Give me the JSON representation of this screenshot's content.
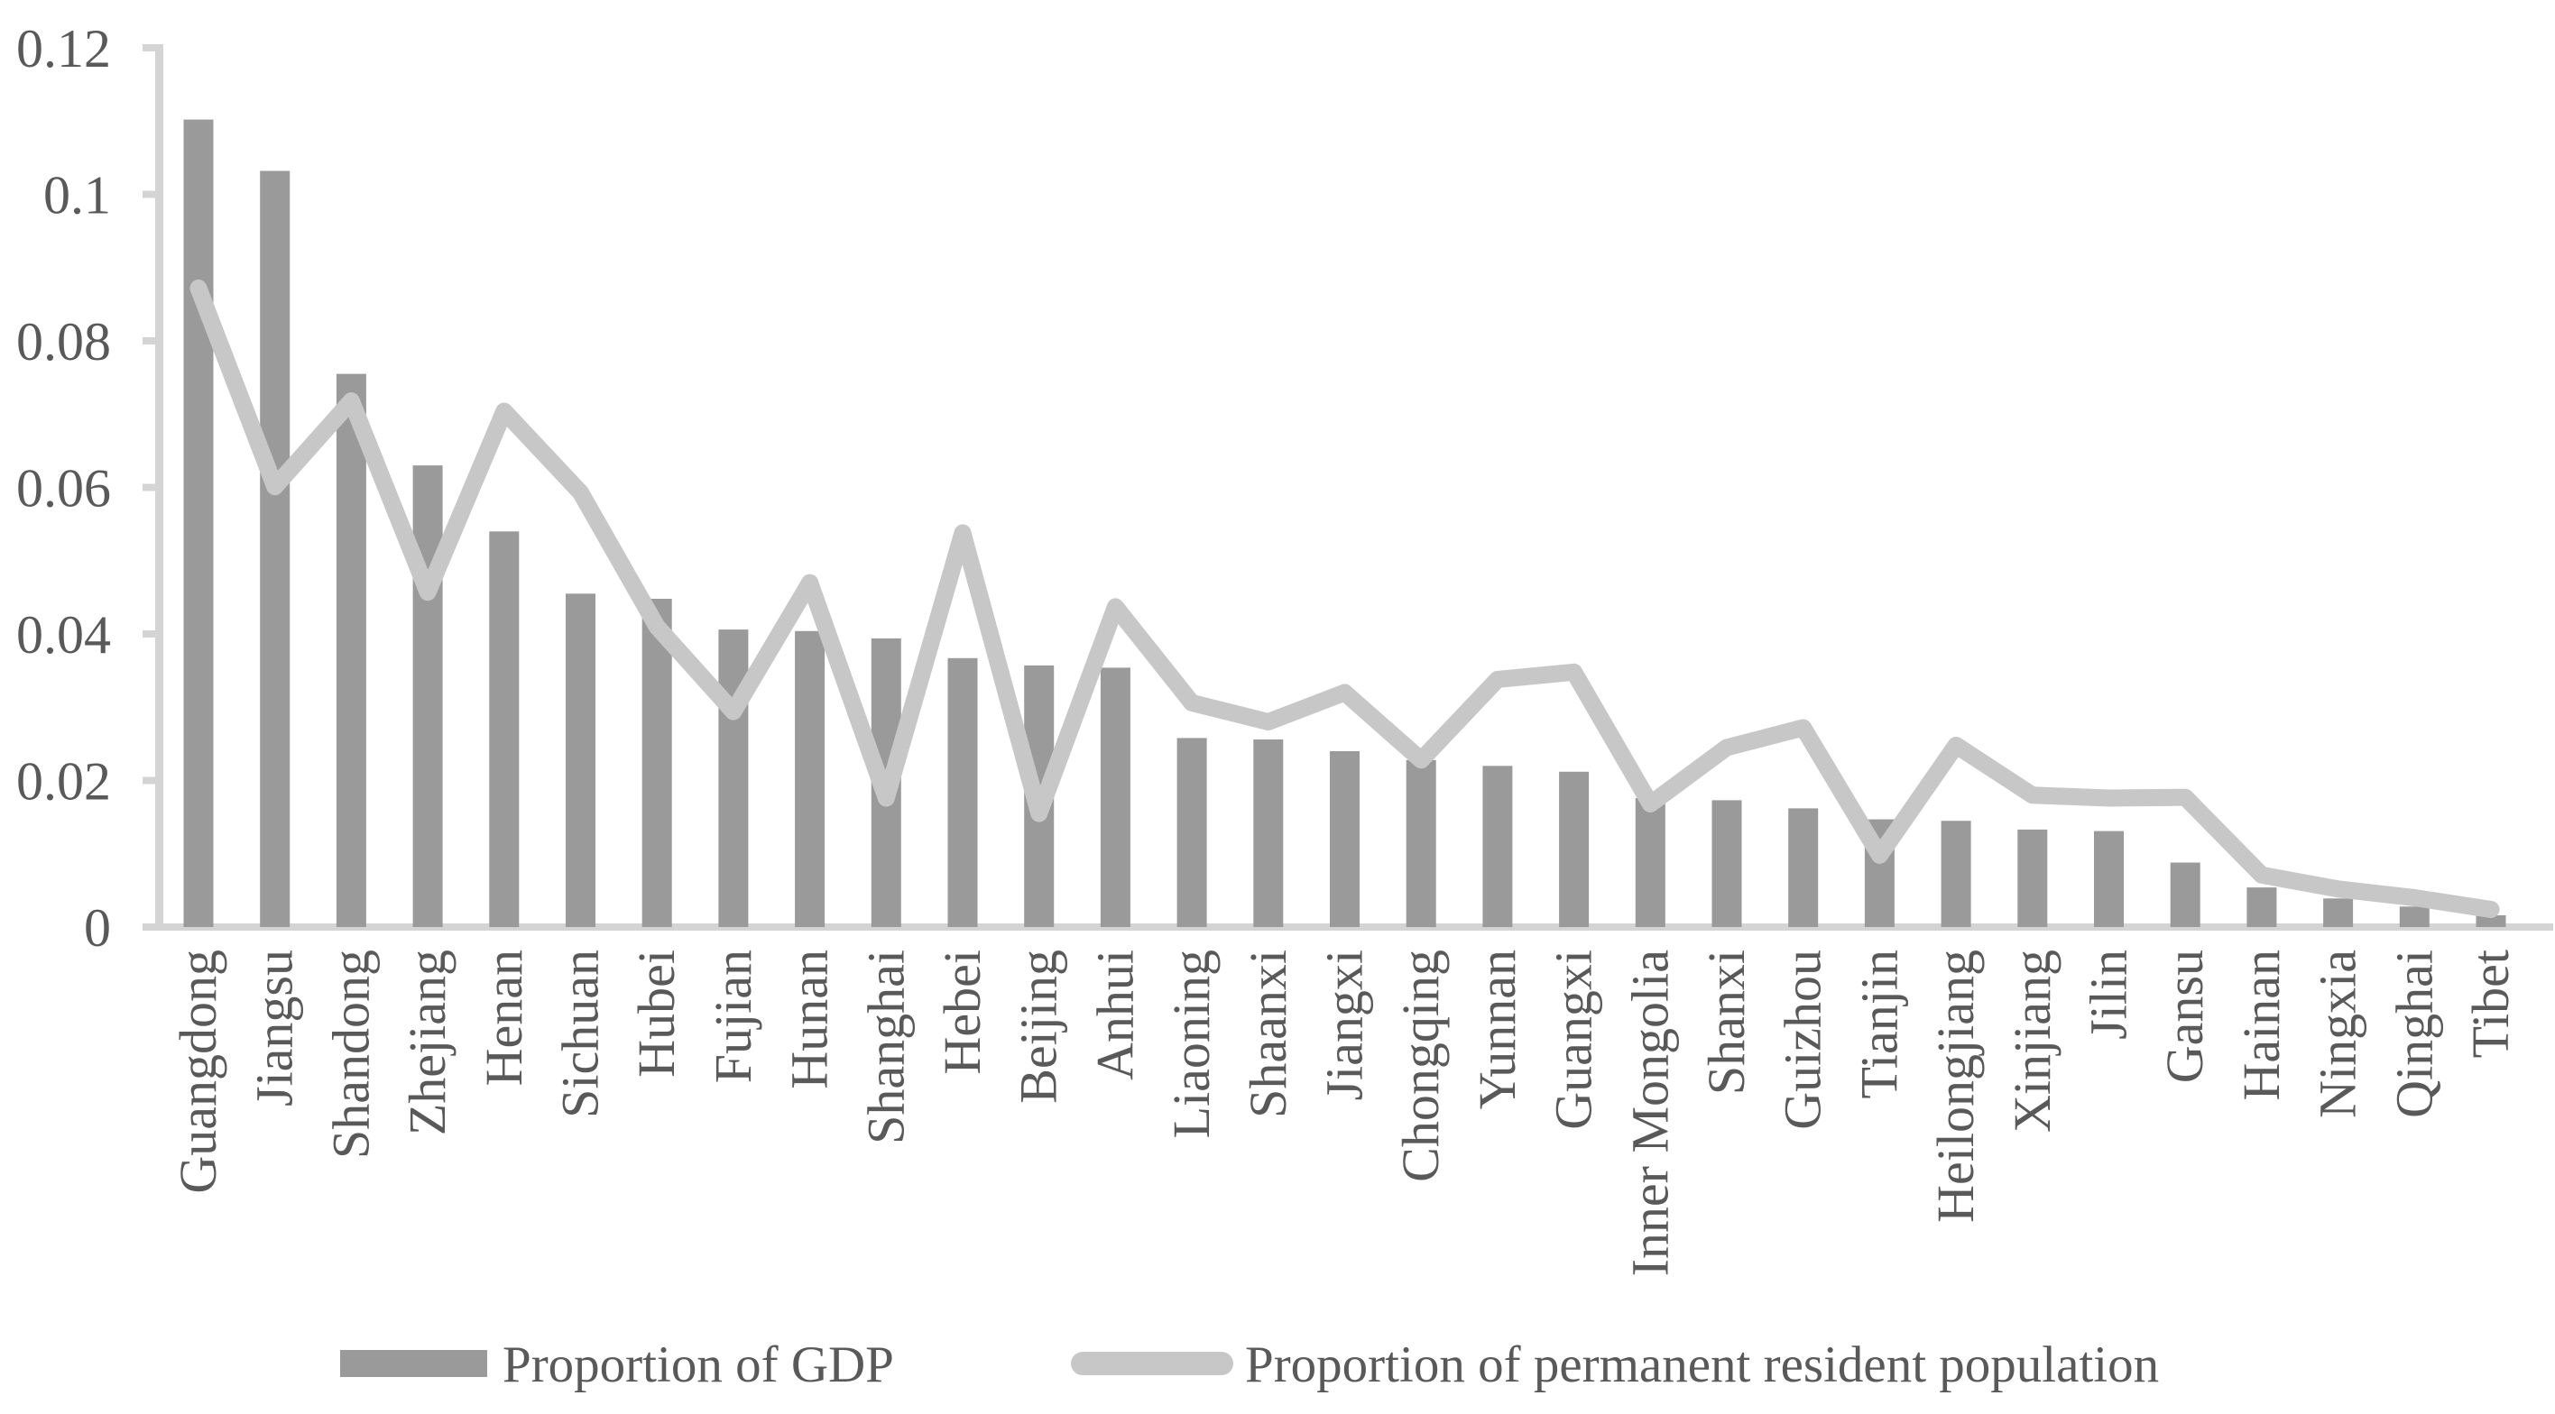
{
  "chart_data": {
    "type": "bar",
    "title": "",
    "xlabel": "",
    "ylabel": "",
    "categories": [
      "Guangdong",
      "Jiangsu",
      "Shandong",
      "Zhejiang",
      "Henan",
      "Sichuan",
      "Hubei",
      "Fujian",
      "Hunan",
      "Shanghai",
      "Hebei",
      "Beijing",
      "Anhui",
      "Liaoning",
      "Shaanxi",
      "Jiangxi",
      "Chongqing",
      "Yunnan",
      "Guangxi",
      "Inner Mongolia",
      "Shanxi",
      "Guizhou",
      "Tianjin",
      "Heilongjiang",
      "Xinjiang",
      "Jilin",
      "Gansu",
      "Hainan",
      "Ningxia",
      "Qinghai",
      "Tibet"
    ],
    "series": [
      {
        "name": "Proportion of GDP",
        "type": "bar",
        "color": "#9a9a9a",
        "values": [
          0.1102,
          0.1032,
          0.0755,
          0.063,
          0.054,
          0.0455,
          0.0448,
          0.0406,
          0.0404,
          0.0394,
          0.0367,
          0.0357,
          0.0354,
          0.0258,
          0.0256,
          0.024,
          0.0228,
          0.022,
          0.0212,
          0.0176,
          0.0173,
          0.0162,
          0.0147,
          0.0145,
          0.0133,
          0.0131,
          0.0088,
          0.0054,
          0.0039,
          0.0028,
          0.0016
        ]
      },
      {
        "name": "Proportion of permanent resident population",
        "type": "line",
        "color": "#c7c7c7",
        "values": [
          0.0872,
          0.0601,
          0.0718,
          0.0457,
          0.0704,
          0.0593,
          0.041,
          0.0294,
          0.047,
          0.0176,
          0.0538,
          0.0155,
          0.0437,
          0.0306,
          0.028,
          0.032,
          0.0228,
          0.0338,
          0.0348,
          0.0168,
          0.0245,
          0.0272,
          0.0098,
          0.0248,
          0.018,
          0.0176,
          0.0177,
          0.0071,
          0.0052,
          0.004,
          0.0024
        ]
      }
    ],
    "ylim": [
      0,
      0.12
    ],
    "yticks": [
      0,
      0.02,
      0.04,
      0.06,
      0.08,
      0.1,
      0.12
    ],
    "ytick_labels": [
      "0",
      "0.02",
      "0.04",
      "0.06",
      "0.08",
      "0.1",
      "0.12"
    ],
    "grid": false,
    "legend_position": "bottom",
    "axis_color": "#d4d4d4",
    "label_color": "#595959",
    "background": "#ffffff"
  }
}
